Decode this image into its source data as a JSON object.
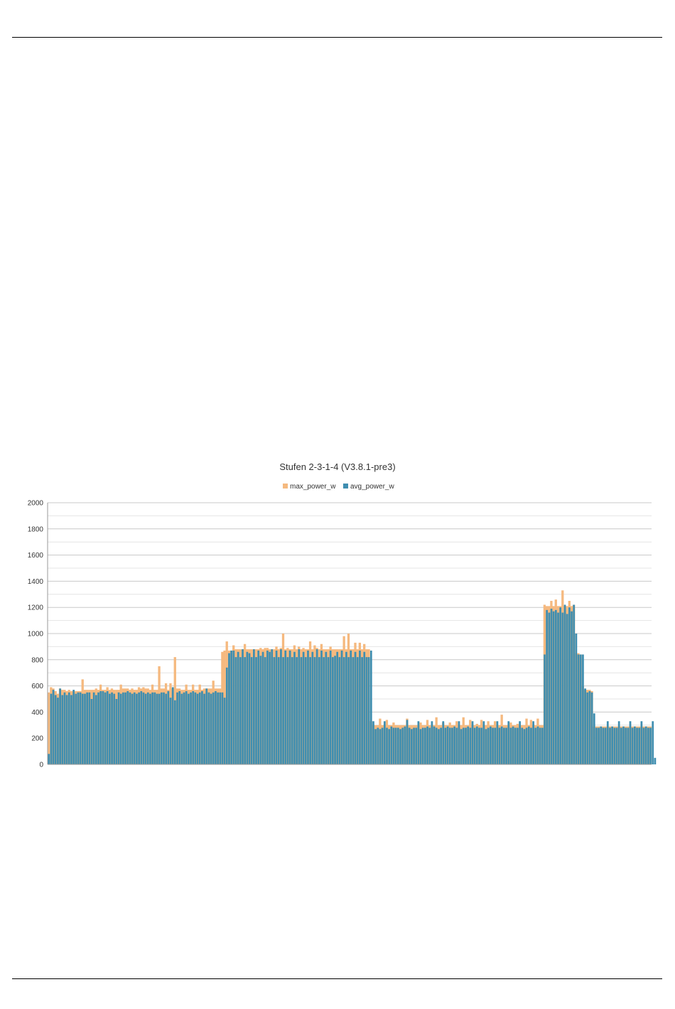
{
  "colors": {
    "max_series": "#f5b97f",
    "avg_series": "#3f8eb0",
    "grid": "#c8c8c8",
    "axis": "#9a9a9a"
  },
  "chart_data": {
    "type": "bar",
    "title": "Stufen 2-3-1-4 (V3.8.1-pre3)",
    "xlabel": "",
    "ylabel": "",
    "ylim": [
      0,
      2000
    ],
    "yticks": [
      0,
      200,
      400,
      600,
      800,
      1000,
      1200,
      1400,
      1600,
      1800,
      2000
    ],
    "grid": true,
    "legend_position": "top-center",
    "overlap": true,
    "series": [
      {
        "name": "max_power_w",
        "values": [
          550,
          590,
          580,
          560,
          540,
          580,
          570,
          570,
          560,
          570,
          560,
          560,
          560,
          560,
          560,
          650,
          570,
          570,
          570,
          570,
          570,
          580,
          570,
          610,
          570,
          570,
          590,
          570,
          580,
          570,
          570,
          570,
          610,
          580,
          580,
          580,
          570,
          580,
          570,
          570,
          590,
          580,
          590,
          580,
          580,
          570,
          610,
          570,
          570,
          750,
          580,
          580,
          620,
          570,
          620,
          580,
          820,
          580,
          580,
          570,
          570,
          610,
          570,
          570,
          610,
          570,
          570,
          610,
          570,
          580,
          580,
          580,
          580,
          640,
          580,
          580,
          580,
          860,
          870,
          940,
          870,
          870,
          910,
          880,
          880,
          880,
          880,
          920,
          880,
          880,
          880,
          880,
          880,
          880,
          890,
          880,
          890,
          890,
          880,
          880,
          880,
          900,
          880,
          890,
          1000,
          880,
          890,
          880,
          880,
          910,
          880,
          900,
          880,
          890,
          880,
          880,
          940,
          880,
          910,
          890,
          880,
          920,
          880,
          880,
          880,
          900,
          880,
          880,
          880,
          880,
          880,
          980,
          880,
          1000,
          880,
          880,
          930,
          880,
          930,
          880,
          920,
          880,
          880,
          330,
          300,
          300,
          300,
          350,
          300,
          300,
          340,
          300,
          300,
          320,
          300,
          300,
          300,
          300,
          300,
          350,
          300,
          300,
          300,
          300,
          300,
          320,
          300,
          300,
          340,
          300,
          300,
          300,
          360,
          300,
          300,
          320,
          300,
          300,
          320,
          300,
          300,
          330,
          300,
          300,
          360,
          300,
          300,
          340,
          300,
          300,
          310,
          300,
          340,
          300,
          300,
          330,
          300,
          300,
          330,
          300,
          300,
          380,
          300,
          300,
          300,
          320,
          300,
          300,
          310,
          300,
          300,
          300,
          350,
          300,
          340,
          300,
          300,
          350,
          300,
          300,
          1220,
          1210,
          1210,
          1250,
          1210,
          1260,
          1210,
          1210,
          1330,
          1210,
          1210,
          1250,
          1210,
          1220,
          850,
          850,
          840,
          600,
          570,
          570,
          570,
          560,
          290,
          290,
          290,
          290,
          290,
          290,
          290,
          290,
          290,
          290,
          290,
          290,
          290,
          290,
          290,
          290,
          290,
          290,
          290,
          290,
          290,
          290,
          290,
          290,
          290,
          290
        ]
      },
      {
        "name": "avg_power_w",
        "values": [
          80,
          540,
          570,
          530,
          510,
          580,
          530,
          550,
          530,
          550,
          530,
          570,
          540,
          550,
          550,
          540,
          540,
          550,
          550,
          500,
          550,
          530,
          550,
          560,
          560,
          550,
          560,
          540,
          550,
          540,
          500,
          550,
          540,
          550,
          550,
          560,
          550,
          540,
          550,
          540,
          550,
          560,
          550,
          540,
          550,
          540,
          550,
          550,
          540,
          540,
          550,
          550,
          540,
          560,
          510,
          590,
          490,
          550,
          560,
          540,
          550,
          560,
          540,
          550,
          560,
          550,
          540,
          550,
          560,
          540,
          580,
          550,
          540,
          550,
          560,
          550,
          550,
          550,
          510,
          740,
          850,
          870,
          870,
          820,
          860,
          820,
          880,
          820,
          860,
          850,
          820,
          880,
          820,
          870,
          830,
          860,
          820,
          870,
          860,
          880,
          820,
          870,
          820,
          880,
          820,
          870,
          820,
          870,
          820,
          860,
          820,
          880,
          820,
          860,
          820,
          870,
          820,
          860,
          820,
          880,
          820,
          870,
          820,
          860,
          820,
          870,
          820,
          830,
          860,
          820,
          870,
          820,
          860,
          820,
          870,
          820,
          860,
          820,
          870,
          820,
          860,
          820,
          820,
          870,
          330,
          270,
          280,
          270,
          280,
          330,
          280,
          270,
          290,
          280,
          280,
          280,
          270,
          280,
          290,
          340,
          280,
          270,
          280,
          280,
          330,
          270,
          280,
          280,
          290,
          280,
          330,
          290,
          280,
          270,
          280,
          330,
          280,
          290,
          280,
          280,
          290,
          280,
          330,
          270,
          280,
          280,
          290,
          280,
          330,
          280,
          290,
          280,
          280,
          330,
          270,
          280,
          290,
          280,
          280,
          330,
          280,
          290,
          280,
          280,
          330,
          280,
          290,
          280,
          280,
          330,
          280,
          270,
          280,
          290,
          280,
          330,
          280,
          290,
          280,
          280,
          840,
          1180,
          1160,
          1190,
          1170,
          1180,
          1160,
          1200,
          1160,
          1220,
          1150,
          1200,
          1170,
          1220,
          1000,
          840,
          840,
          840,
          580,
          550,
          560,
          550,
          390,
          280,
          280,
          290,
          280,
          280,
          330,
          280,
          290,
          280,
          280,
          330,
          280,
          290,
          280,
          280,
          330,
          280,
          290,
          280,
          280,
          330,
          280,
          290,
          280,
          280,
          330,
          50
        ]
      }
    ]
  }
}
